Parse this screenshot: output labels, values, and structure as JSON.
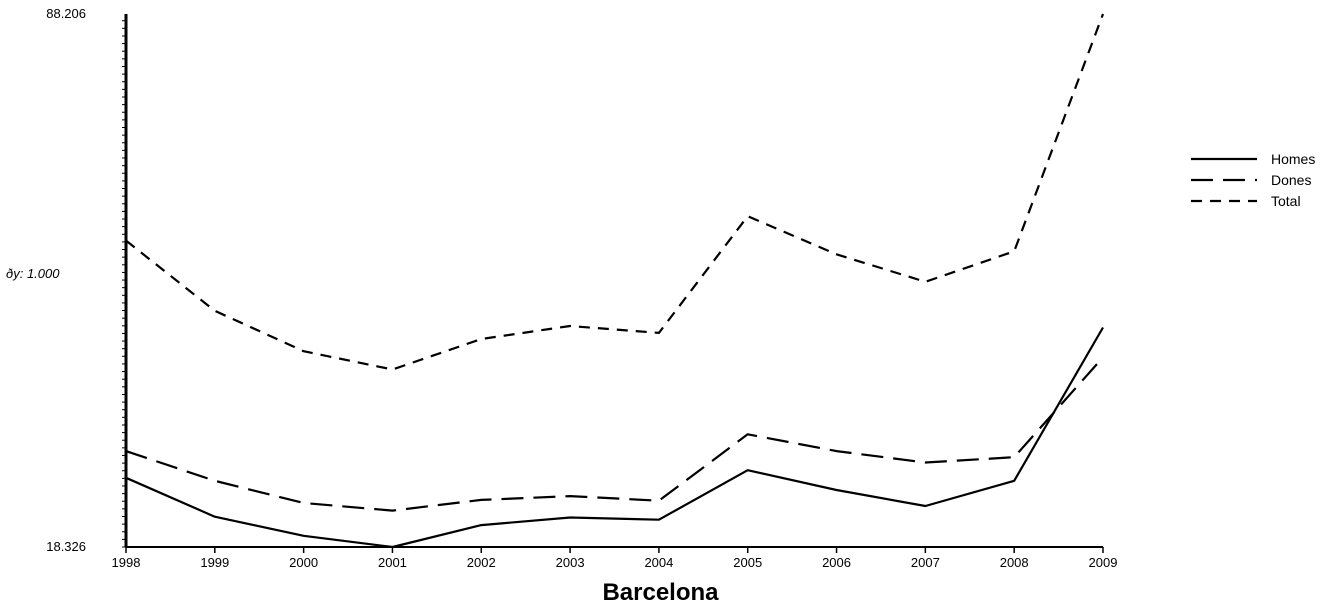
{
  "chart_data": {
    "type": "line",
    "title": "Barcelona",
    "xlabel": "",
    "ylabel": "",
    "y_axis_note": "ðy: 1.000",
    "x": [
      "1998",
      "1999",
      "2000",
      "2001",
      "2002",
      "2003",
      "2004",
      "2005",
      "2006",
      "2007",
      "2008",
      "2009"
    ],
    "ylim": [
      18.326,
      88.206
    ],
    "y_tick_labels": [
      "88.206",
      "18.326"
    ],
    "y_minor_step": 1.0,
    "series": [
      {
        "name": "Homes",
        "dash": "solid",
        "values": [
          27.4,
          22.3,
          19.8,
          18.33,
          21.2,
          22.2,
          21.9,
          28.4,
          25.8,
          23.7,
          27.0,
          47.1
        ]
      },
      {
        "name": "Dones",
        "dash": "long-dash",
        "values": [
          30.9,
          27.0,
          24.1,
          23.1,
          24.5,
          25.0,
          24.4,
          33.1,
          30.9,
          29.4,
          30.1,
          43.2
        ]
      },
      {
        "name": "Total",
        "dash": "short-dash",
        "values": [
          58.5,
          49.3,
          44.0,
          41.6,
          45.6,
          47.3,
          46.4,
          61.7,
          56.7,
          53.1,
          57.1,
          88.206
        ]
      }
    ],
    "legend": {
      "position": "right"
    },
    "grid": false
  }
}
